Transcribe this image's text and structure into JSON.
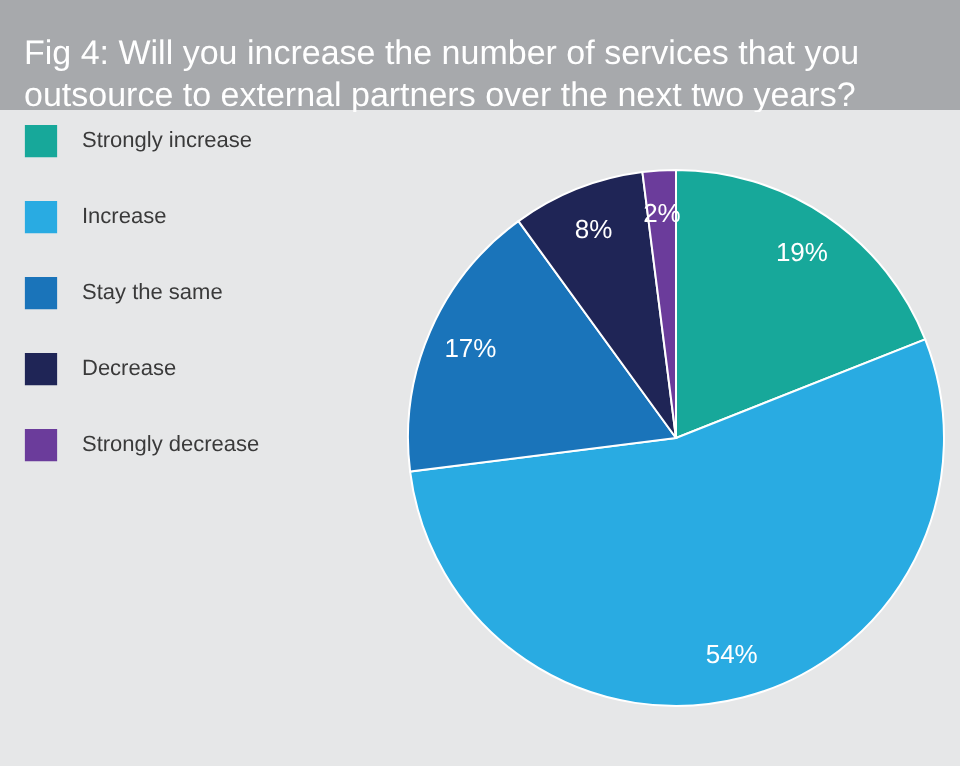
{
  "chart_data": {
    "type": "pie",
    "title": "Fig 4: Will you increase the number of services that you\noutsource to external partners over the next two years?",
    "categories": [
      "Strongly increase",
      "Increase",
      "Stay the same",
      "Decrease",
      "Strongly decrease"
    ],
    "values": [
      19,
      54,
      17,
      8,
      2
    ],
    "colors": [
      "#17a89a",
      "#29abe2",
      "#1a74ba",
      "#1f2556",
      "#6b3c9b"
    ],
    "value_labels": [
      "19%",
      "54%",
      "17%",
      "8%",
      "2%"
    ],
    "legend": "left"
  }
}
